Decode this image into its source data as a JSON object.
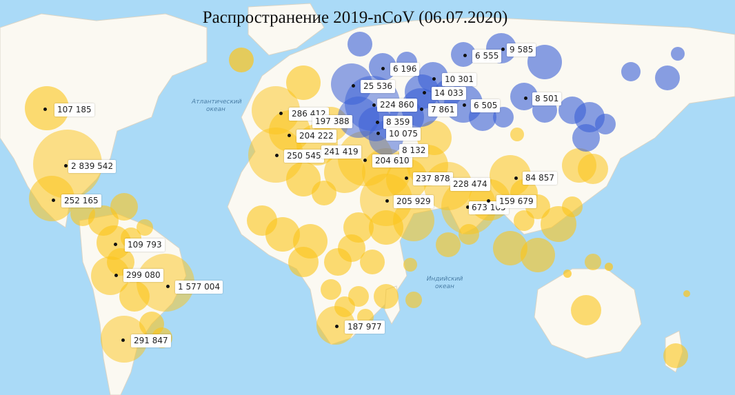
{
  "title": "Распространение 2019-nCoV  (06.07.2020)",
  "oceans": [
    {
      "line1": "Атлантический",
      "line2": "океан"
    },
    {
      "line1": "Индийский",
      "line2": "океан"
    }
  ],
  "colors": {
    "water": "#aadaf7",
    "land": "#fbf9f2",
    "yellow": "#fcc419",
    "blue": "#3a5fd6"
  },
  "labels": [
    "107 185",
    "2 839 542",
    "252 165",
    "109 793",
    "299 080",
    "1 577 004",
    "291 847",
    "286 412",
    "197 388",
    "204 222",
    "250 545",
    "241 419",
    "204 610",
    "237 878",
    "228 474",
    "205 929",
    "673 165",
    "159 679",
    "84 857",
    "187 977",
    "25 536",
    "224 860",
    "8 359",
    "10 075",
    "8 132",
    "6 196",
    "10 301",
    "14 033",
    "7 861",
    "6 555",
    "9 585",
    "8 501",
    "6 505"
  ]
}
